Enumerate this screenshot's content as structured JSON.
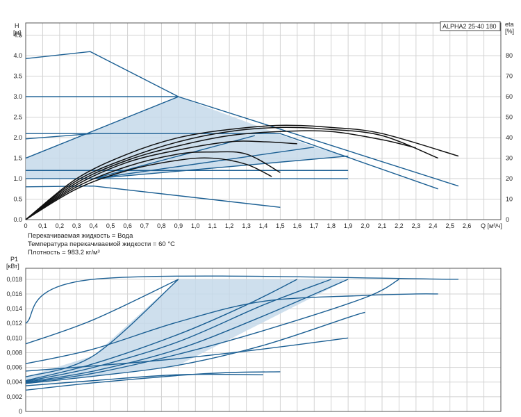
{
  "chart_data": [
    {
      "type": "line",
      "title": "ALPHA2 25-40 180",
      "ylabel_left": [
        "H",
        "[м]"
      ],
      "ylabel_right": [
        "eta",
        "[%]"
      ],
      "xlabel": "Q [м³/ч]",
      "xlim": [
        0,
        2.8
      ],
      "ylim": [
        0,
        4.8
      ],
      "ylim_right": [
        0,
        96
      ],
      "grid": true,
      "x_ticks": [
        "0",
        "0,1",
        "0,2",
        "0,3",
        "0,4",
        "0,5",
        "0,6",
        "0,7",
        "0,8",
        "0,9",
        "1,0",
        "1,1",
        "1,2",
        "1,3",
        "1,4",
        "1,5",
        "1,6",
        "1,7",
        "1,8",
        "1,9",
        "2,0",
        "2,1",
        "2,2",
        "2,3",
        "2,4",
        "2,5",
        "2,6"
      ],
      "y_ticks": [
        "0.0",
        "0.5",
        "1.0",
        "1.5",
        "2.0",
        "2.5",
        "3.0",
        "3.5",
        "4.0",
        "4.5"
      ],
      "y_ticks_right": [
        "0",
        "10",
        "20",
        "30",
        "40",
        "50",
        "60",
        "70",
        "80"
      ],
      "notes": [
        "Перекачиваемая жидкость = Вода",
        "Температура перекачиваемой жидкости = 60 °C",
        "Плотность = 983.2 кг/м³"
      ],
      "shaded_region": [
        [
          0,
          1.0
        ],
        [
          0,
          1.5
        ],
        [
          0.9,
          3.0
        ],
        [
          1.7,
          1.77
        ],
        [
          1.9,
          1.55
        ],
        [
          0.4,
          1.0
        ]
      ],
      "series": [
        {
          "kind": "head",
          "values": [
            [
              0,
              3.93
            ],
            [
              0.38,
              4.1
            ],
            [
              0.9,
              3.0
            ],
            [
              2.55,
              0.82
            ]
          ]
        },
        {
          "kind": "head",
          "values": [
            [
              0,
              3.0
            ],
            [
              0.9,
              3.0
            ]
          ]
        },
        {
          "kind": "head",
          "values": [
            [
              0,
              2.1
            ],
            [
              1.5,
              2.1
            ],
            [
              2.43,
              0.75
            ]
          ]
        },
        {
          "kind": "head",
          "values": [
            [
              0,
              1.97
            ],
            [
              0.4,
              2.1
            ]
          ]
        },
        {
          "kind": "head",
          "values": [
            [
              0,
              1.5
            ],
            [
              0.9,
              3.0
            ]
          ]
        },
        {
          "kind": "head",
          "values": [
            [
              0,
              1.2
            ],
            [
              1.9,
              1.2
            ]
          ]
        },
        {
          "kind": "head",
          "values": [
            [
              0,
              1.0
            ],
            [
              1.9,
              1.0
            ]
          ]
        },
        {
          "kind": "head",
          "values": [
            [
              0,
              0.8
            ],
            [
              0.4,
              0.82
            ],
            [
              1.5,
              0.3
            ]
          ]
        },
        {
          "kind": "head",
          "values": [
            [
              0.4,
              1.0
            ],
            [
              1.7,
              1.77
            ]
          ]
        },
        {
          "kind": "head",
          "values": [
            [
              0.4,
              1.0
            ],
            [
              1.9,
              1.55
            ]
          ]
        },
        {
          "kind": "head",
          "values": [
            [
              0.4,
              1.0
            ],
            [
              1.35,
              2.05
            ]
          ]
        },
        {
          "kind": "efficiency",
          "values": [
            [
              0,
              0
            ],
            [
              0.3,
              20
            ],
            [
              0.6,
              32
            ],
            [
              0.9,
              40
            ],
            [
              1.2,
              44
            ],
            [
              1.5,
              46
            ],
            [
              1.8,
              45
            ],
            [
              2.1,
              42
            ],
            [
              2.55,
              31
            ]
          ]
        },
        {
          "kind": "efficiency",
          "values": [
            [
              0,
              0
            ],
            [
              0.3,
              19
            ],
            [
              0.6,
              30
            ],
            [
              0.9,
              38
            ],
            [
              1.2,
              43
            ],
            [
              1.5,
              45
            ],
            [
              1.8,
              44
            ],
            [
              2.1,
              41
            ],
            [
              2.43,
              30
            ]
          ]
        },
        {
          "kind": "efficiency",
          "values": [
            [
              0,
              0
            ],
            [
              0.3,
              18
            ],
            [
              0.6,
              29
            ],
            [
              0.9,
              36
            ],
            [
              1.2,
              41
            ],
            [
              1.5,
              43
            ],
            [
              1.8,
              43
            ],
            [
              2.1,
              39
            ],
            [
              2.3,
              35
            ]
          ]
        },
        {
          "kind": "efficiency",
          "values": [
            [
              0,
              0
            ],
            [
              0.3,
              17
            ],
            [
              0.6,
              28
            ],
            [
              0.9,
              34
            ],
            [
              1.2,
              38
            ],
            [
              1.4,
              38
            ],
            [
              1.6,
              37
            ]
          ]
        },
        {
          "kind": "efficiency",
          "values": [
            [
              0,
              0
            ],
            [
              0.3,
              16
            ],
            [
              0.6,
              26
            ],
            [
              0.9,
              32
            ],
            [
              1.1,
              33
            ],
            [
              1.3,
              32
            ],
            [
              1.5,
              23
            ]
          ]
        },
        {
          "kind": "efficiency",
          "values": [
            [
              0,
              0
            ],
            [
              0.3,
              15
            ],
            [
              0.6,
              24
            ],
            [
              0.9,
              29
            ],
            [
              1.1,
              30
            ],
            [
              1.3,
              27
            ],
            [
              1.45,
              21
            ]
          ]
        }
      ]
    },
    {
      "type": "line",
      "ylabel": [
        "P1",
        "[кВт]"
      ],
      "xlim": [
        0,
        2.8
      ],
      "ylim": [
        0,
        0.0195
      ],
      "grid": true,
      "y_ticks": [
        "0",
        "0,002",
        "0,004",
        "0,006",
        "0,008",
        "0,010",
        "0,012",
        "0,014",
        "0,016",
        "0,018"
      ],
      "shaded_region": [
        [
          0,
          0.0038
        ],
        [
          0,
          0.0047
        ],
        [
          0.4,
          0.0076
        ],
        [
          0.9,
          0.018
        ],
        [
          1.9,
          0.018
        ],
        [
          0.9,
          0.0063
        ],
        [
          0.4,
          0.0048
        ]
      ],
      "series": [
        {
          "values": [
            [
              0,
              0.012
            ],
            [
              0.4,
              0.018
            ],
            [
              2.55,
              0.018
            ]
          ]
        },
        {
          "values": [
            [
              0,
              0.0092
            ],
            [
              0.4,
              0.0125
            ],
            [
              0.9,
              0.018
            ]
          ]
        },
        {
          "values": [
            [
              0,
              0.0047
            ],
            [
              0.4,
              0.0076
            ],
            [
              0.9,
              0.018
            ]
          ]
        },
        {
          "values": [
            [
              0,
              0.0065
            ],
            [
              0.4,
              0.0085
            ],
            [
              0.9,
              0.0122
            ],
            [
              1.4,
              0.015
            ],
            [
              2.0,
              0.0158
            ],
            [
              2.3,
              0.016
            ],
            [
              2.43,
              0.016
            ]
          ]
        },
        {
          "values": [
            [
              0,
              0.0042
            ],
            [
              0.4,
              0.0065
            ],
            [
              0.9,
              0.0105
            ],
            [
              1.3,
              0.0145
            ],
            [
              1.6,
              0.018
            ]
          ]
        },
        {
          "values": [
            [
              0,
              0.0041
            ],
            [
              0.4,
              0.006
            ],
            [
              0.9,
              0.0095
            ],
            [
              1.4,
              0.0145
            ],
            [
              1.8,
              0.018
            ]
          ]
        },
        {
          "values": [
            [
              0,
              0.004
            ],
            [
              0.4,
              0.0055
            ],
            [
              0.9,
              0.0085
            ],
            [
              1.4,
              0.013
            ],
            [
              1.9,
              0.018
            ]
          ]
        },
        {
          "values": [
            [
              0,
              0.0039
            ],
            [
              0.4,
              0.0052
            ],
            [
              0.9,
              0.0078
            ],
            [
              1.4,
              0.011
            ],
            [
              2.0,
              0.0155
            ],
            [
              2.2,
              0.018
            ]
          ]
        },
        {
          "values": [
            [
              0,
              0.0038
            ],
            [
              0.4,
              0.0048
            ],
            [
              0.9,
              0.0063
            ],
            [
              1.4,
              0.009
            ],
            [
              1.9,
              0.0128
            ],
            [
              2.0,
              0.0135
            ]
          ]
        },
        {
          "values": [
            [
              0,
              0.0055
            ],
            [
              0.4,
              0.0062
            ],
            [
              0.9,
              0.0072
            ],
            [
              1.4,
              0.0085
            ],
            [
              1.9,
              0.01
            ]
          ]
        },
        {
          "values": [
            [
              0,
              0.0029
            ],
            [
              0.4,
              0.0039
            ],
            [
              0.9,
              0.0049
            ],
            [
              1.2,
              0.0053
            ],
            [
              1.5,
              0.0054
            ]
          ]
        },
        {
          "values": [
            [
              0,
              0.0035
            ],
            [
              0.4,
              0.0042
            ],
            [
              0.9,
              0.005
            ],
            [
              1.4,
              0.005
            ]
          ]
        }
      ]
    }
  ]
}
